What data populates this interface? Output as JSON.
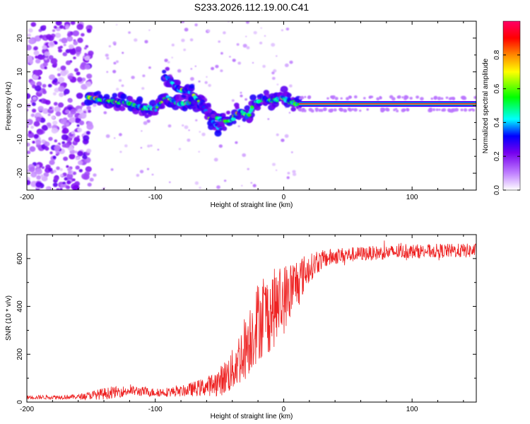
{
  "title": "S233.2026.112.19.00.C41",
  "chart_data": [
    {
      "type": "heatmap",
      "name": "spectrogram",
      "xlabel": "Height of straight line (km)",
      "ylabel": "Frequency (Hz)",
      "xlim": [
        -200,
        150
      ],
      "ylim": [
        -25,
        25
      ],
      "xticks": [
        -200,
        -100,
        0,
        100
      ],
      "yticks": [
        -20,
        -10,
        0,
        10,
        20
      ],
      "colorbar": {
        "label": "Normalized spectral amplitude",
        "range": [
          0,
          1
        ],
        "ticks": [
          "0.0",
          "0.2",
          "0.4",
          "0.6",
          "0.8"
        ],
        "colors": [
          "#ffffff",
          "#c080ff",
          "#7700ee",
          "#0000ff",
          "#00ffff",
          "#00ff00",
          "#ffff00",
          "#ff8800",
          "#ff0000",
          "#ff0066"
        ]
      },
      "features": [
        {
          "label": "noise field",
          "x_range": [
            -200,
            -150
          ],
          "y_range": [
            -25,
            25
          ],
          "amplitude": 0.15
        },
        {
          "label": "main ridge",
          "points": [
            [
              -153,
              2.5
            ],
            [
              -140,
              1.5
            ],
            [
              -125,
              1
            ],
            [
              -110,
              -0.5
            ],
            [
              -100,
              -1
            ],
            [
              -92,
              2.5
            ],
            [
              -82,
              0.5
            ],
            [
              -72,
              1
            ],
            [
              -62,
              0
            ],
            [
              -55,
              -3
            ],
            [
              -46,
              -5
            ],
            [
              -40,
              -4
            ],
            [
              -35,
              -1.5
            ],
            [
              -28,
              -3
            ],
            [
              -22,
              1
            ],
            [
              -15,
              2
            ],
            [
              -8,
              1.5
            ],
            [
              -2,
              2.5
            ],
            [
              5,
              1
            ],
            [
              12,
              0.5
            ]
          ],
          "amplitude": 0.45
        },
        {
          "label": "branch ridge",
          "points": [
            [
              -93,
              9
            ],
            [
              -82,
              5
            ],
            [
              -72,
              4
            ],
            [
              -62,
              -1
            ],
            [
              -55,
              -5
            ],
            [
              -48,
              -7
            ]
          ],
          "amplitude": 0.35
        },
        {
          "label": "carrier line",
          "x_range": [
            12,
            150
          ],
          "frequency": 0.5,
          "amplitude": 1.0
        }
      ]
    },
    {
      "type": "line",
      "name": "snr",
      "xlabel": "Height of straight line (km)",
      "ylabel": "SNR (10 * v/v)",
      "xlim": [
        -200,
        150
      ],
      "ylim": [
        0,
        700
      ],
      "xticks": [
        -200,
        -100,
        0,
        100
      ],
      "yticks": [
        0,
        200,
        400,
        600
      ],
      "color": "#ee2222",
      "series": [
        {
          "name": "SNR",
          "envelope": {
            "x": [
              -200,
              -160,
              -140,
              -120,
              -100,
              -80,
              -60,
              -50,
              -40,
              -30,
              -20,
              -10,
              0,
              10,
              20,
              30,
              40,
              60,
              80,
              100,
              120,
              150
            ],
            "y": [
              20,
              22,
              35,
              48,
              40,
              45,
              65,
              85,
              130,
              230,
              340,
              380,
              430,
              500,
              560,
              595,
              610,
              620,
              625,
              630,
              632,
              633
            ],
            "noise": [
              8,
              10,
              25,
              22,
              18,
              22,
              40,
              60,
              90,
              140,
              170,
              170,
              150,
              110,
              60,
              40,
              35,
              30,
              30,
              30,
              30,
              30
            ]
          }
        }
      ]
    }
  ]
}
